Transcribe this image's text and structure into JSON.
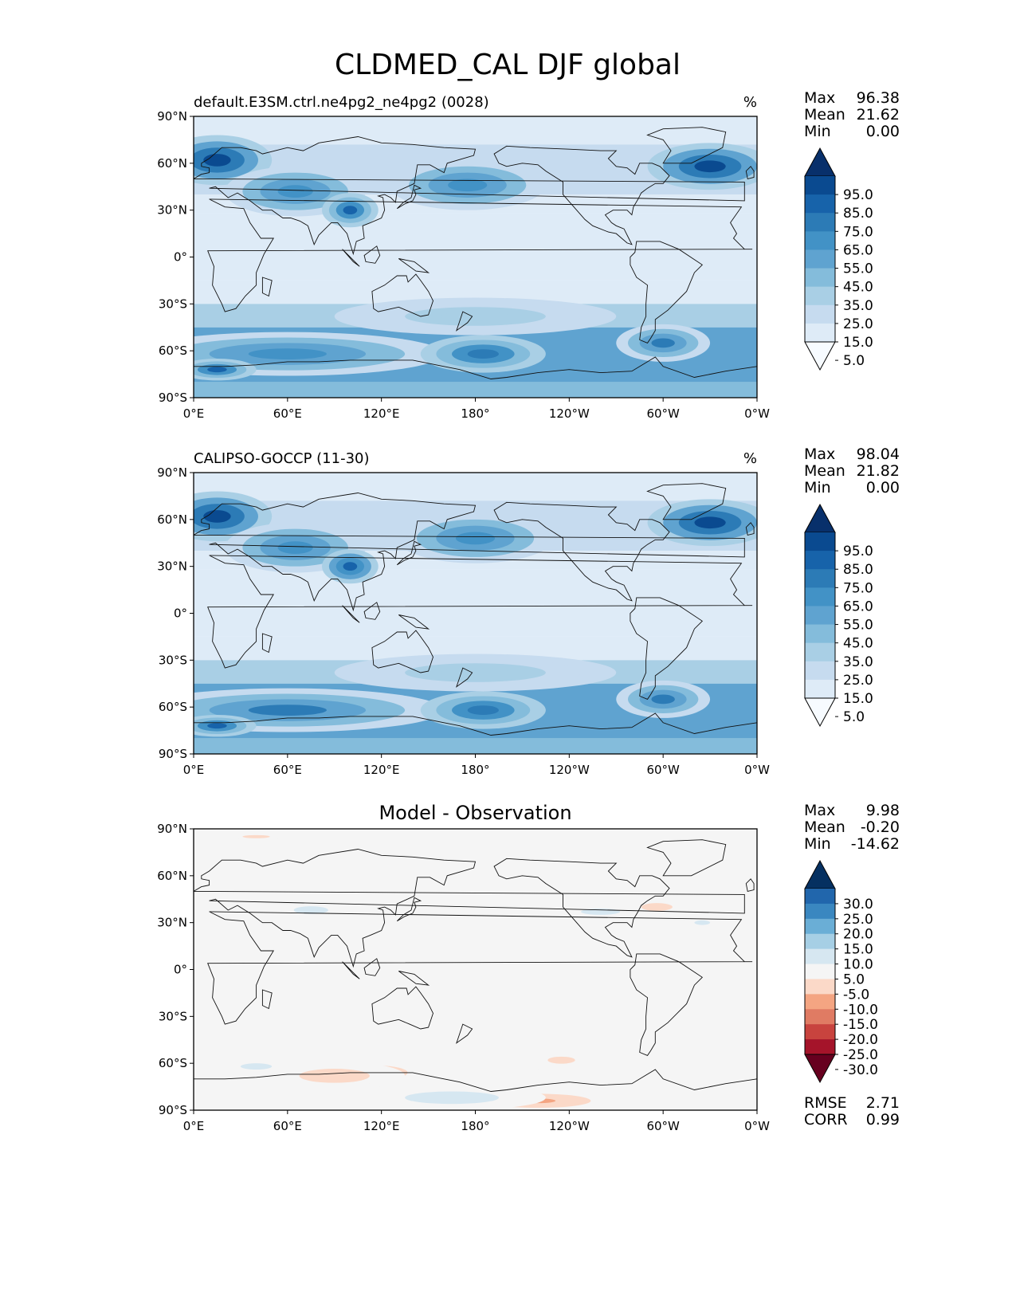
{
  "figure": {
    "title": "CLDMED_CAL DJF global"
  },
  "axes": {
    "lat_ticks": [
      "90°N",
      "60°N",
      "30°N",
      "0°",
      "30°S",
      "60°S",
      "90°S"
    ],
    "lon_ticks": [
      "0°E",
      "60°E",
      "120°E",
      "180°",
      "120°W",
      "60°W",
      "0°W"
    ]
  },
  "panels": [
    {
      "title_left": "default.E3SM.ctrl.ne4pg2_ne4pg2 (0028)",
      "title_right": "%",
      "title_center": "",
      "stats": [
        {
          "label": "Max",
          "value": "96.38"
        },
        {
          "label": "Mean",
          "value": "21.62"
        },
        {
          "label": "Min",
          "value": "0.00"
        }
      ],
      "extra_stats": [],
      "colorbar": {
        "type": "seq",
        "labels": [
          "95.0",
          "85.0",
          "75.0",
          "65.0",
          "55.0",
          "45.0",
          "35.0",
          "25.0",
          "15.0",
          "5.0"
        ],
        "colors": [
          "#08306b",
          "#0a4a90",
          "#1763aa",
          "#2c7bb6",
          "#4292c6",
          "#5fa3d0",
          "#84bcdb",
          "#a9cfe5",
          "#c6dbef",
          "#deebf7",
          "#f7fbff"
        ]
      }
    },
    {
      "title_left": "CALIPSO-GOCCP (11-30)",
      "title_right": "%",
      "title_center": "",
      "stats": [
        {
          "label": "Max",
          "value": "98.04"
        },
        {
          "label": "Mean",
          "value": "21.82"
        },
        {
          "label": "Min",
          "value": "0.00"
        }
      ],
      "extra_stats": [],
      "colorbar": {
        "type": "seq",
        "labels": [
          "95.0",
          "85.0",
          "75.0",
          "65.0",
          "55.0",
          "45.0",
          "35.0",
          "25.0",
          "15.0",
          "5.0"
        ],
        "colors": [
          "#08306b",
          "#0a4a90",
          "#1763aa",
          "#2c7bb6",
          "#4292c6",
          "#5fa3d0",
          "#84bcdb",
          "#a9cfe5",
          "#c6dbef",
          "#deebf7",
          "#f7fbff"
        ]
      }
    },
    {
      "title_left": "",
      "title_right": "",
      "title_center": "Model - Observation",
      "stats": [
        {
          "label": "Max",
          "value": "9.98"
        },
        {
          "label": "Mean",
          "value": "-0.20"
        },
        {
          "label": "Min",
          "value": "-14.62"
        }
      ],
      "extra_stats": [
        {
          "label": "RMSE",
          "value": "2.71"
        },
        {
          "label": "CORR",
          "value": "0.99"
        }
      ],
      "colorbar": {
        "type": "div",
        "labels": [
          "30.0",
          "25.0",
          "20.0",
          "15.0",
          "10.0",
          "5.0",
          "-5.0",
          "-10.0",
          "-15.0",
          "-20.0",
          "-25.0",
          "-30.0"
        ],
        "colors": [
          "#053061",
          "#2166ac",
          "#3a87c0",
          "#6aaed6",
          "#a6cfe5",
          "#d6e7f1",
          "#f5f5f5",
          "#fbd9c8",
          "#f4a582",
          "#e07b63",
          "#c8433e",
          "#a5142a",
          "#67001f"
        ]
      }
    }
  ],
  "chart_data": [
    {
      "type": "heatmap",
      "title": "default.E3SM.ctrl.ne4pg2_ne4pg2 (0028)",
      "units": "%",
      "x": [
        0,
        60,
        120,
        180,
        240,
        300,
        360
      ],
      "y": [
        90,
        60,
        30,
        0,
        -30,
        -60,
        -90
      ],
      "xlim": [
        0,
        360
      ],
      "ylim": [
        -90,
        90
      ],
      "levels": [
        5,
        15,
        25,
        35,
        45,
        55,
        65,
        75,
        85,
        95
      ],
      "features": [
        {
          "lon": 15,
          "lat": 62,
          "value": 88,
          "rlon": 35,
          "rlat": 16
        },
        {
          "lon": 65,
          "lat": 42,
          "value": 62,
          "rlon": 45,
          "rlat": 16
        },
        {
          "lon": 100,
          "lat": 30,
          "value": 78,
          "rlon": 18,
          "rlat": 11
        },
        {
          "lon": 175,
          "lat": 46,
          "value": 62,
          "rlon": 50,
          "rlat": 16
        },
        {
          "lon": 330,
          "lat": 58,
          "value": 92,
          "rlon": 40,
          "rlat": 15
        },
        {
          "lon": 180,
          "lat": -38,
          "value": 32,
          "rlon": 90,
          "rlat": 12
        },
        {
          "lon": 60,
          "lat": -62,
          "value": 62,
          "rlon": 100,
          "rlat": 14
        },
        {
          "lon": 185,
          "lat": -62,
          "value": 70,
          "rlon": 40,
          "rlat": 12
        },
        {
          "lon": 300,
          "lat": -55,
          "value": 65,
          "rlon": 30,
          "rlat": 12
        },
        {
          "lon": 15,
          "lat": -72,
          "value": 75,
          "rlon": 25,
          "rlat": 7
        }
      ]
    },
    {
      "type": "heatmap",
      "title": "CALIPSO-GOCCP (11-30)",
      "units": "%",
      "x": [
        0,
        60,
        120,
        180,
        240,
        300,
        360
      ],
      "y": [
        90,
        60,
        30,
        0,
        -30,
        -60,
        -90
      ],
      "xlim": [
        0,
        360
      ],
      "ylim": [
        -90,
        90
      ],
      "levels": [
        5,
        15,
        25,
        35,
        45,
        55,
        65,
        75,
        85,
        95
      ],
      "features": [
        {
          "lon": 15,
          "lat": 62,
          "value": 90,
          "rlon": 35,
          "rlat": 16
        },
        {
          "lon": 65,
          "lat": 42,
          "value": 63,
          "rlon": 45,
          "rlat": 16
        },
        {
          "lon": 100,
          "lat": 30,
          "value": 80,
          "rlon": 18,
          "rlat": 11
        },
        {
          "lon": 180,
          "lat": 48,
          "value": 64,
          "rlon": 50,
          "rlat": 16
        },
        {
          "lon": 330,
          "lat": 58,
          "value": 94,
          "rlon": 40,
          "rlat": 15
        },
        {
          "lon": 180,
          "lat": -38,
          "value": 30,
          "rlon": 90,
          "rlat": 12
        },
        {
          "lon": 60,
          "lat": -62,
          "value": 65,
          "rlon": 100,
          "rlat": 14
        },
        {
          "lon": 185,
          "lat": -62,
          "value": 70,
          "rlon": 40,
          "rlat": 12
        },
        {
          "lon": 300,
          "lat": -55,
          "value": 68,
          "rlon": 30,
          "rlat": 12
        },
        {
          "lon": 15,
          "lat": -72,
          "value": 78,
          "rlon": 25,
          "rlat": 7
        }
      ]
    },
    {
      "type": "heatmap",
      "title": "Model - Observation",
      "x": [
        0,
        60,
        120,
        180,
        240,
        300,
        360
      ],
      "y": [
        90,
        60,
        30,
        0,
        -30,
        -60,
        -90
      ],
      "xlim": [
        0,
        360
      ],
      "ylim": [
        -90,
        90
      ],
      "levels": [
        -30,
        -25,
        -20,
        -15,
        -10,
        -5,
        5,
        10,
        15,
        20,
        25,
        30
      ],
      "features": [
        {
          "lon": 40,
          "lat": 85,
          "value": -6,
          "rlon": 35,
          "rlat": 4
        },
        {
          "lon": 75,
          "lat": 38,
          "value": 7,
          "rlon": 22,
          "rlat": 5
        },
        {
          "lon": 118,
          "lat": -66,
          "value": -12,
          "rlon": 25,
          "rlat": 6
        },
        {
          "lon": 90,
          "lat": -68,
          "value": -7,
          "rlon": 45,
          "rlat": 9
        },
        {
          "lon": 220,
          "lat": -84,
          "value": -12,
          "rlon": 45,
          "rlat": 6
        },
        {
          "lon": 235,
          "lat": -58,
          "value": -6,
          "rlon": 35,
          "rlat": 9
        },
        {
          "lon": 296,
          "lat": 40,
          "value": -7,
          "rlon": 20,
          "rlat": 5
        },
        {
          "lon": 40,
          "lat": -62,
          "value": 7,
          "rlon": 20,
          "rlat": 4
        },
        {
          "lon": 165,
          "lat": -82,
          "value": 7,
          "rlon": 60,
          "rlat": 8
        },
        {
          "lon": 260,
          "lat": 37,
          "value": 7,
          "rlon": 25,
          "rlat": 4
        },
        {
          "lon": 325,
          "lat": 30,
          "value": 7,
          "rlon": 10,
          "rlat": 3
        }
      ]
    }
  ]
}
